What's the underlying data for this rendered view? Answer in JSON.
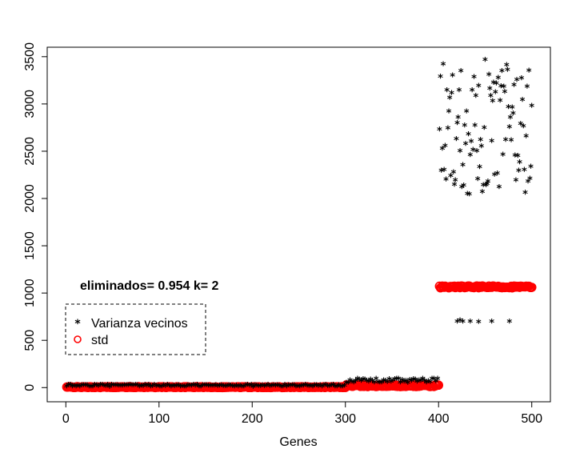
{
  "chart_data": {
    "type": "scatter",
    "xlabel": "Genes",
    "ylabel": "",
    "xlim": [
      -20,
      520
    ],
    "ylim": [
      -150,
      3600
    ],
    "xticks": [
      0,
      100,
      200,
      300,
      400,
      500
    ],
    "yticks": [
      0,
      500,
      1000,
      1500,
      2000,
      2500,
      3000,
      3500
    ],
    "xtick_labels": [
      "0",
      "100",
      "200",
      "300",
      "400",
      "500"
    ],
    "ytick_labels": [
      "0",
      "500",
      "1000",
      "1500",
      "2000",
      "2500",
      "3000",
      "3500"
    ],
    "grid": false,
    "annotation": "eliminados= 0.954 k= 2",
    "legend": {
      "placement": "left",
      "entries": [
        "Varianza vecinos",
        "std"
      ]
    },
    "series": [
      {
        "name": "Varianza vecinos",
        "marker": "*",
        "color": "#000000",
        "segments": [
          {
            "x_range": [
              1,
              300
            ],
            "y_approx": [
              0,
              20
            ],
            "note_values": "near zero"
          },
          {
            "x_range": [
              301,
              400
            ],
            "y_approx": [
              40,
              85
            ]
          },
          {
            "x_range": [
              401,
              500
            ],
            "y_approx": [
              2030,
              3460
            ]
          }
        ],
        "outliers": [
          {
            "x": 420,
            "y": 690
          },
          {
            "x": 423,
            "y": 700
          },
          {
            "x": 426,
            "y": 690
          },
          {
            "x": 434,
            "y": 690
          },
          {
            "x": 443,
            "y": 685
          },
          {
            "x": 457,
            "y": 690
          },
          {
            "x": 476,
            "y": 690
          }
        ]
      },
      {
        "name": "std",
        "marker": "o",
        "color": "#ff0000",
        "segments": [
          {
            "x_range": [
              1,
              300
            ],
            "y_approx": [
              0,
              10
            ]
          },
          {
            "x_range": [
              301,
              400
            ],
            "y_approx": [
              10,
              30
            ]
          },
          {
            "x_range": [
              401,
              500
            ],
            "y_approx": [
              1055,
              1075
            ]
          }
        ]
      }
    ]
  },
  "colors": {
    "axis": "#000000",
    "varianza": "#000000",
    "std": "#ff0000"
  }
}
